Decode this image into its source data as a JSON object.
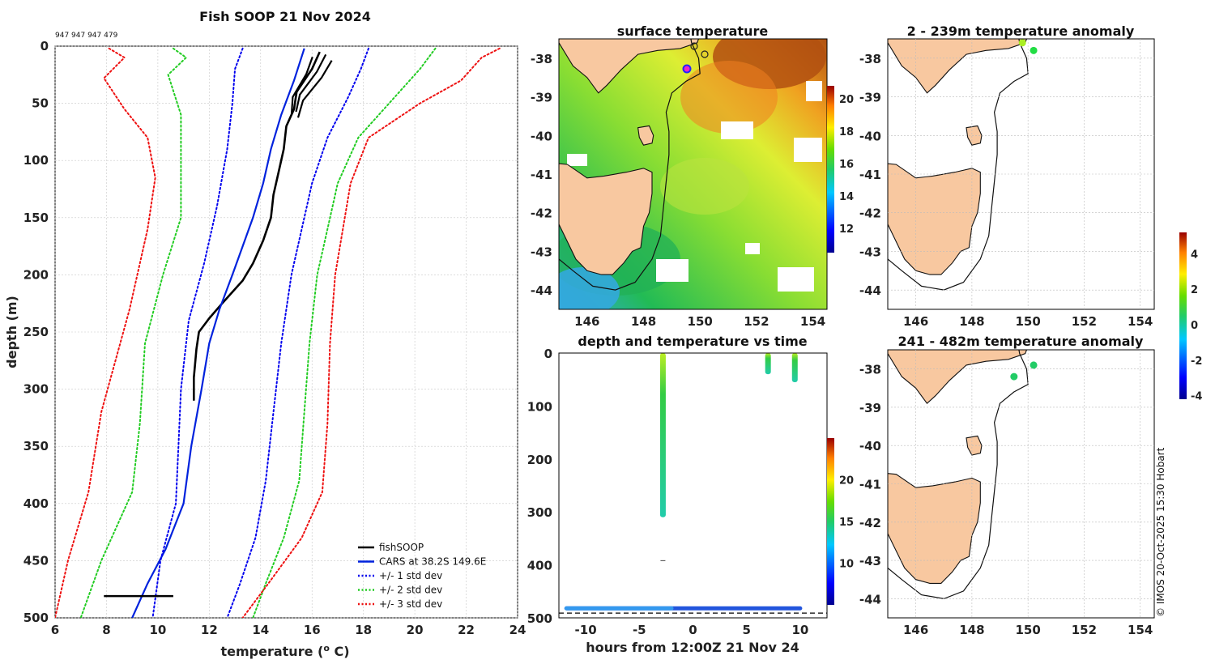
{
  "chart_data": [
    {
      "type": "line",
      "title": "Fish SOOP 21 Nov 2024",
      "subtitle": "947 947 947 479",
      "xlabel": "temperature (",
      "xlabel_sup": "o",
      "xlabel_end": " C)",
      "ylabel": "depth (m)",
      "xlim": [
        6,
        24
      ],
      "ylim": [
        0,
        500
      ],
      "xticks": [
        "6",
        "8",
        "10",
        "12",
        "14",
        "16",
        "18",
        "20",
        "22",
        "24"
      ],
      "yticks": [
        "0",
        "50",
        "100",
        "150",
        "200",
        "250",
        "300",
        "350",
        "400",
        "450",
        "500"
      ],
      "grid": true,
      "legend_position": "bottom-right",
      "series": [
        {
          "name": "fishSOOP",
          "color": "#000000",
          "style": "solid",
          "points": [
            [
              16.3,
              5
            ],
            [
              16.0,
              20
            ],
            [
              15.4,
              40
            ],
            [
              15.3,
              55
            ],
            [
              15.0,
              70
            ],
            [
              14.9,
              90
            ],
            [
              14.7,
              110
            ],
            [
              14.5,
              130
            ],
            [
              14.4,
              150
            ],
            [
              14.1,
              170
            ],
            [
              13.7,
              190
            ],
            [
              13.3,
              205
            ],
            [
              12.9,
              215
            ],
            [
              12.5,
              225
            ],
            [
              12.0,
              238
            ],
            [
              11.6,
              250
            ],
            [
              11.5,
              265
            ],
            [
              11.4,
              290
            ],
            [
              11.4,
              310
            ]
          ]
        },
        {
          "name": "CARS at 38.2S 149.6E",
          "color": "#0022dd",
          "style": "solid",
          "points": [
            [
              15.7,
              2
            ],
            [
              15.3,
              30
            ],
            [
              14.8,
              60
            ],
            [
              14.4,
              90
            ],
            [
              14.1,
              120
            ],
            [
              13.7,
              150
            ],
            [
              13.3,
              175
            ],
            [
              12.9,
              200
            ],
            [
              12.4,
              230
            ],
            [
              12.0,
              260
            ],
            [
              11.7,
              300
            ],
            [
              11.3,
              350
            ],
            [
              11.0,
              400
            ],
            [
              10.3,
              440
            ],
            [
              9.6,
              470
            ],
            [
              9.0,
              500
            ]
          ]
        },
        {
          "name": "+/- 1 std dev",
          "color": "#0000ee",
          "style": "dotted",
          "points": [
            [
              13.3,
              2
            ],
            [
              13.0,
              20
            ],
            [
              12.9,
              50
            ],
            [
              12.7,
              90
            ],
            [
              12.3,
              140
            ],
            [
              11.8,
              190
            ],
            [
              11.2,
              240
            ],
            [
              10.9,
              300
            ],
            [
              10.8,
              350
            ],
            [
              10.7,
              400
            ],
            [
              10.1,
              450
            ],
            [
              9.8,
              500
            ]
          ],
          "points2": [
            [
              18.2,
              2
            ],
            [
              17.9,
              20
            ],
            [
              17.4,
              45
            ],
            [
              16.6,
              80
            ],
            [
              16.0,
              120
            ],
            [
              15.6,
              160
            ],
            [
              15.2,
              200
            ],
            [
              14.8,
              260
            ],
            [
              14.5,
              320
            ],
            [
              14.2,
              380
            ],
            [
              13.8,
              430
            ],
            [
              13.2,
              470
            ],
            [
              12.7,
              500
            ]
          ]
        },
        {
          "name": "+/- 2 std dev",
          "color": "#22cc22",
          "style": "dotted",
          "points": [
            [
              10.6,
              2
            ],
            [
              11.1,
              10
            ],
            [
              10.4,
              25
            ],
            [
              10.9,
              60
            ],
            [
              10.9,
              100
            ],
            [
              10.9,
              150
            ],
            [
              10.2,
              200
            ],
            [
              9.5,
              260
            ],
            [
              9.3,
              330
            ],
            [
              9.0,
              390
            ],
            [
              7.8,
              450
            ],
            [
              7.0,
              500
            ]
          ],
          "points2": [
            [
              20.8,
              2
            ],
            [
              20.2,
              20
            ],
            [
              19.0,
              50
            ],
            [
              17.8,
              80
            ],
            [
              17.0,
              120
            ],
            [
              16.6,
              160
            ],
            [
              16.2,
              200
            ],
            [
              15.9,
              260
            ],
            [
              15.7,
              320
            ],
            [
              15.5,
              380
            ],
            [
              14.9,
              430
            ],
            [
              14.2,
              470
            ],
            [
              13.7,
              500
            ]
          ]
        },
        {
          "name": "+/- 3 std dev",
          "color": "#ee1111",
          "style": "dotted",
          "points": [
            [
              8.1,
              2
            ],
            [
              8.7,
              10
            ],
            [
              7.9,
              28
            ],
            [
              8.7,
              55
            ],
            [
              9.6,
              80
            ],
            [
              9.9,
              115
            ],
            [
              9.6,
              160
            ],
            [
              8.9,
              230
            ],
            [
              7.8,
              320
            ],
            [
              7.3,
              390
            ],
            [
              6.5,
              450
            ],
            [
              6.0,
              500
            ]
          ],
          "points2": [
            [
              23.3,
              2
            ],
            [
              22.6,
              10
            ],
            [
              21.8,
              30
            ],
            [
              20.2,
              50
            ],
            [
              18.2,
              80
            ],
            [
              17.5,
              120
            ],
            [
              17.2,
              160
            ],
            [
              16.9,
              200
            ],
            [
              16.7,
              260
            ],
            [
              16.6,
              330
            ],
            [
              16.4,
              390
            ],
            [
              15.6,
              430
            ],
            [
              14.3,
              470
            ],
            [
              13.3,
              500
            ]
          ]
        }
      ]
    },
    {
      "type": "heatmap",
      "title": "surface temperature",
      "xticks": [
        "146",
        "148",
        "150",
        "152",
        "154"
      ],
      "yticks": [
        "-38",
        "-39",
        "-40",
        "-41",
        "-42",
        "-43",
        "-44"
      ],
      "xlim": [
        145,
        154.5
      ],
      "ylim": [
        -44.5,
        -37.5
      ],
      "colorbar_ticks": [
        "12",
        "14",
        "16",
        "18",
        "20"
      ],
      "colorbar_range": [
        10.5,
        20.8
      ]
    },
    {
      "type": "scatter",
      "title": "depth and temperature vs time",
      "xlabel": "hours from 12:00Z 21 Nov 24",
      "xticks": [
        "-10",
        "-5",
        "0",
        "5",
        "10"
      ],
      "yticks": [
        "0",
        "100",
        "200",
        "300",
        "400",
        "500"
      ],
      "xlim": [
        -12.5,
        12.5
      ],
      "ylim": [
        0,
        500
      ],
      "colorbar_ticks": [
        "10",
        "15",
        "20"
      ],
      "colorbar_range": [
        5,
        25
      ],
      "casts": [
        {
          "hour": -2.8,
          "depth_min": 0,
          "depth_max": 310
        },
        {
          "hour": 7.0,
          "depth_min": 0,
          "depth_max": 40
        },
        {
          "hour": 9.5,
          "depth_min": 0,
          "depth_max": 55
        }
      ],
      "bottom_track_depth": 482
    },
    {
      "type": "scatter",
      "title": "2 - 239m temperature anomaly",
      "xticks": [
        "146",
        "148",
        "150",
        "152",
        "154"
      ],
      "yticks": [
        "-38",
        "-39",
        "-40",
        "-41",
        "-42",
        "-43",
        "-44"
      ],
      "points": [
        [
          149.8,
          -37.6,
          2.5
        ],
        [
          150.2,
          -37.8,
          0.8
        ]
      ]
    },
    {
      "type": "scatter",
      "title": "241 - 482m temperature anomaly",
      "xticks": [
        "146",
        "148",
        "150",
        "152",
        "154"
      ],
      "yticks": [
        "-38",
        "-39",
        "-40",
        "-41",
        "-42",
        "-43",
        "-44"
      ],
      "points": [
        [
          149.5,
          -38.2,
          0.5
        ],
        [
          150.2,
          -37.9,
          0.4
        ]
      ]
    }
  ],
  "anomaly_colorbar": {
    "ticks": [
      "4",
      "2",
      "0",
      "-2",
      "-4"
    ],
    "range": [
      -4.2,
      5.2
    ]
  },
  "credit": "© IMOS 20-Oct-2025 15:30 Hobart"
}
